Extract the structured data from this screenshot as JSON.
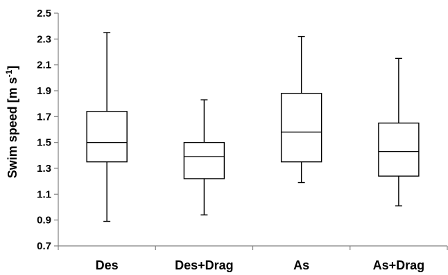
{
  "chart_data": {
    "type": "box",
    "title": "",
    "xlabel": "",
    "ylabel": "Swim speed [m s-1]",
    "ylabel_parts": {
      "main": "Swim speed [m s",
      "sup": "-1",
      "close": "]"
    },
    "ylim": [
      0.7,
      2.5
    ],
    "yticks": [
      "0.7",
      "0.9",
      "1.1",
      "1.3",
      "1.5",
      "1.7",
      "1.9",
      "2.1",
      "2.3",
      "2.5"
    ],
    "grid": false,
    "categories": [
      "Des",
      "Des+Drag",
      "As",
      "As+Drag"
    ],
    "boxes": [
      {
        "category": "Des",
        "min": 0.89,
        "q1": 1.35,
        "median": 1.5,
        "q3": 1.74,
        "max": 2.35
      },
      {
        "category": "Des+Drag",
        "min": 0.94,
        "q1": 1.22,
        "median": 1.39,
        "q3": 1.5,
        "max": 1.83
      },
      {
        "category": "As",
        "min": 1.19,
        "q1": 1.35,
        "median": 1.58,
        "q3": 1.88,
        "max": 2.32
      },
      {
        "category": "As+Drag",
        "min": 1.01,
        "q1": 1.24,
        "median": 1.43,
        "q3": 1.65,
        "max": 2.15
      }
    ],
    "colors": {
      "stroke": "#000000",
      "box_fill": "#ffffff",
      "axis": "#808080"
    }
  }
}
